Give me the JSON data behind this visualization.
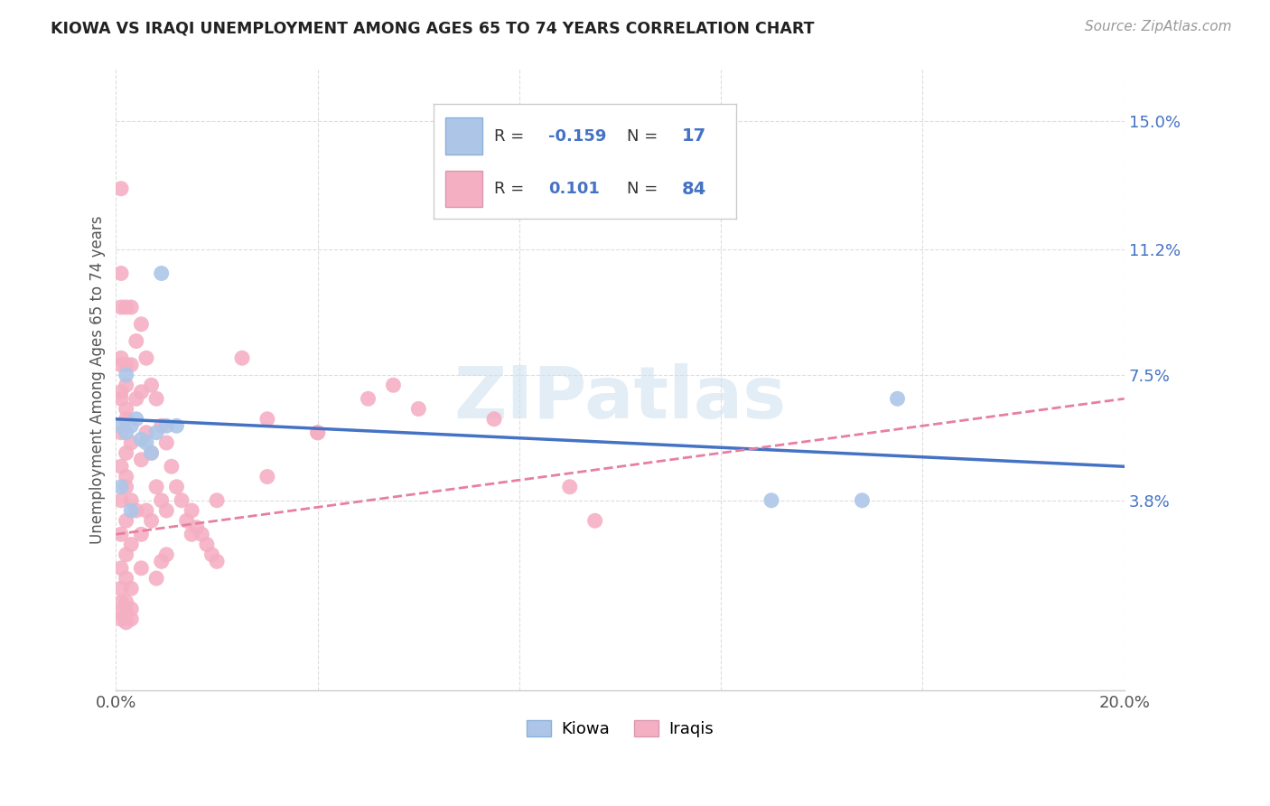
{
  "title": "KIOWA VS IRAQI UNEMPLOYMENT AMONG AGES 65 TO 74 YEARS CORRELATION CHART",
  "source": "Source: ZipAtlas.com",
  "ylabel": "Unemployment Among Ages 65 to 74 years",
  "xlim": [
    0.0,
    0.2
  ],
  "ylim": [
    -0.018,
    0.165
  ],
  "xticks": [
    0.0,
    0.04,
    0.08,
    0.12,
    0.16,
    0.2
  ],
  "xtick_labels": [
    "0.0%",
    "",
    "",
    "",
    "",
    "20.0%"
  ],
  "ytick_labels_right": [
    "15.0%",
    "11.2%",
    "7.5%",
    "3.8%"
  ],
  "ytick_vals_right": [
    0.15,
    0.112,
    0.075,
    0.038
  ],
  "kiowa_R": -0.159,
  "kiowa_N": 17,
  "iraqi_R": 0.101,
  "iraqi_N": 84,
  "kiowa_color": "#adc6e8",
  "iraqi_color": "#f4afc3",
  "kiowa_line_color": "#4472c4",
  "iraqi_line_color": "#e87f9f",
  "background_color": "#ffffff",
  "kiowa_line_start_y": 0.062,
  "kiowa_line_end_y": 0.048,
  "iraqi_line_start_y": 0.028,
  "iraqi_line_end_y": 0.068,
  "kiowa_x": [
    0.001,
    0.002,
    0.002,
    0.003,
    0.004,
    0.005,
    0.006,
    0.007,
    0.008,
    0.009,
    0.01,
    0.012,
    0.001,
    0.003,
    0.155,
    0.148,
    0.13
  ],
  "kiowa_y": [
    0.06,
    0.058,
    0.075,
    0.06,
    0.062,
    0.056,
    0.055,
    0.052,
    0.058,
    0.105,
    0.06,
    0.06,
    0.042,
    0.035,
    0.068,
    0.038,
    0.038
  ],
  "iraqi_x": [
    0.001,
    0.001,
    0.001,
    0.001,
    0.001,
    0.002,
    0.002,
    0.002,
    0.002,
    0.003,
    0.003,
    0.003,
    0.003,
    0.004,
    0.004,
    0.004,
    0.005,
    0.005,
    0.005,
    0.005,
    0.006,
    0.006,
    0.006,
    0.007,
    0.007,
    0.007,
    0.008,
    0.008,
    0.009,
    0.009,
    0.01,
    0.01,
    0.011,
    0.012,
    0.013,
    0.014,
    0.015,
    0.016,
    0.017,
    0.018,
    0.019,
    0.02,
    0.001,
    0.002,
    0.003,
    0.001,
    0.002,
    0.001,
    0.002,
    0.003,
    0.001,
    0.002,
    0.001,
    0.002,
    0.001,
    0.002,
    0.001,
    0.002,
    0.001,
    0.001,
    0.001,
    0.001,
    0.002,
    0.002,
    0.002,
    0.003,
    0.003,
    0.025,
    0.03,
    0.04,
    0.05,
    0.055,
    0.06,
    0.075,
    0.09,
    0.095,
    0.04,
    0.03,
    0.02,
    0.015,
    0.01,
    0.005,
    0.008,
    0.009
  ],
  "iraqi_y": [
    0.13,
    0.105,
    0.095,
    0.08,
    0.07,
    0.095,
    0.078,
    0.065,
    0.045,
    0.095,
    0.078,
    0.055,
    0.038,
    0.085,
    0.068,
    0.035,
    0.09,
    0.07,
    0.05,
    0.028,
    0.08,
    0.058,
    0.035,
    0.072,
    0.052,
    0.032,
    0.068,
    0.042,
    0.06,
    0.038,
    0.055,
    0.035,
    0.048,
    0.042,
    0.038,
    0.032,
    0.035,
    0.03,
    0.028,
    0.025,
    0.022,
    0.02,
    0.018,
    0.015,
    0.012,
    0.028,
    0.022,
    0.038,
    0.032,
    0.025,
    0.048,
    0.042,
    0.058,
    0.052,
    0.068,
    0.062,
    0.078,
    0.072,
    0.005,
    0.008,
    0.012,
    0.003,
    0.005,
    0.008,
    0.002,
    0.003,
    0.006,
    0.08,
    0.062,
    0.058,
    0.068,
    0.072,
    0.065,
    0.062,
    0.042,
    0.032,
    0.058,
    0.045,
    0.038,
    0.028,
    0.022,
    0.018,
    0.015,
    0.02
  ]
}
